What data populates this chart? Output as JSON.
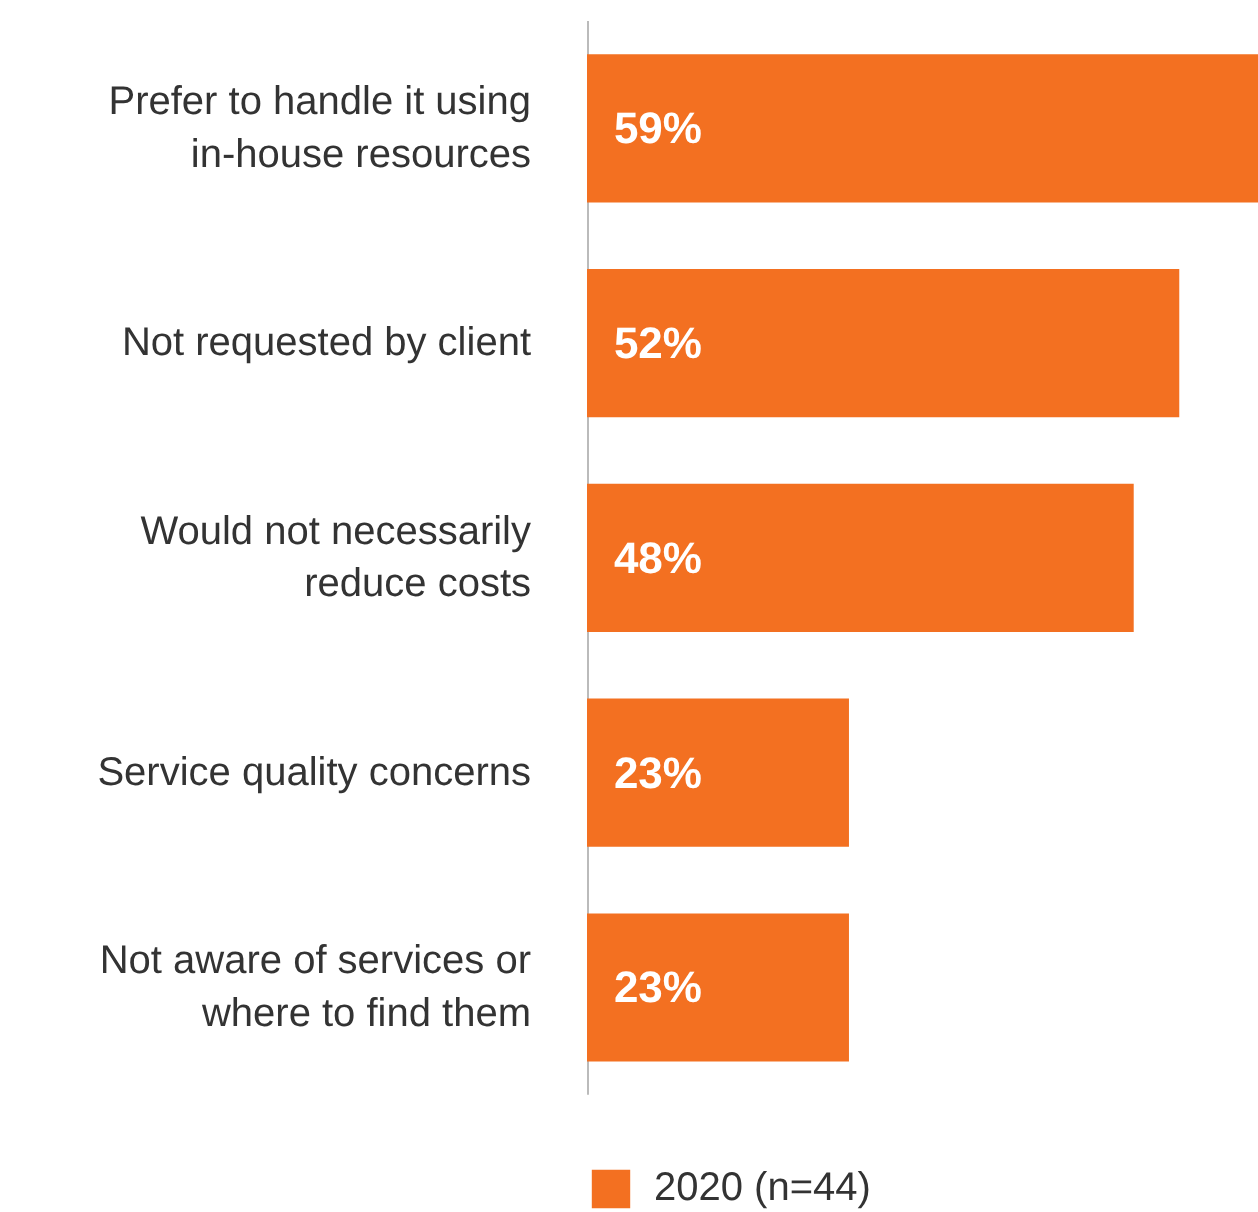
{
  "chart_data": {
    "type": "bar",
    "orientation": "horizontal",
    "categories": [
      "Prefer to handle it using in-house resources",
      "Not requested by client",
      "Would not necessarily reduce costs",
      "Service quality concerns",
      "Not aware of services or where to find them"
    ],
    "series": [
      {
        "name": "2020 (n=44)",
        "color": "#f37021",
        "values": [
          59,
          52,
          48,
          23,
          23
        ],
        "value_labels": [
          "59%",
          "52%",
          "48%",
          "23%",
          "23%"
        ]
      }
    ],
    "legend": "bottom",
    "grid": false
  }
}
